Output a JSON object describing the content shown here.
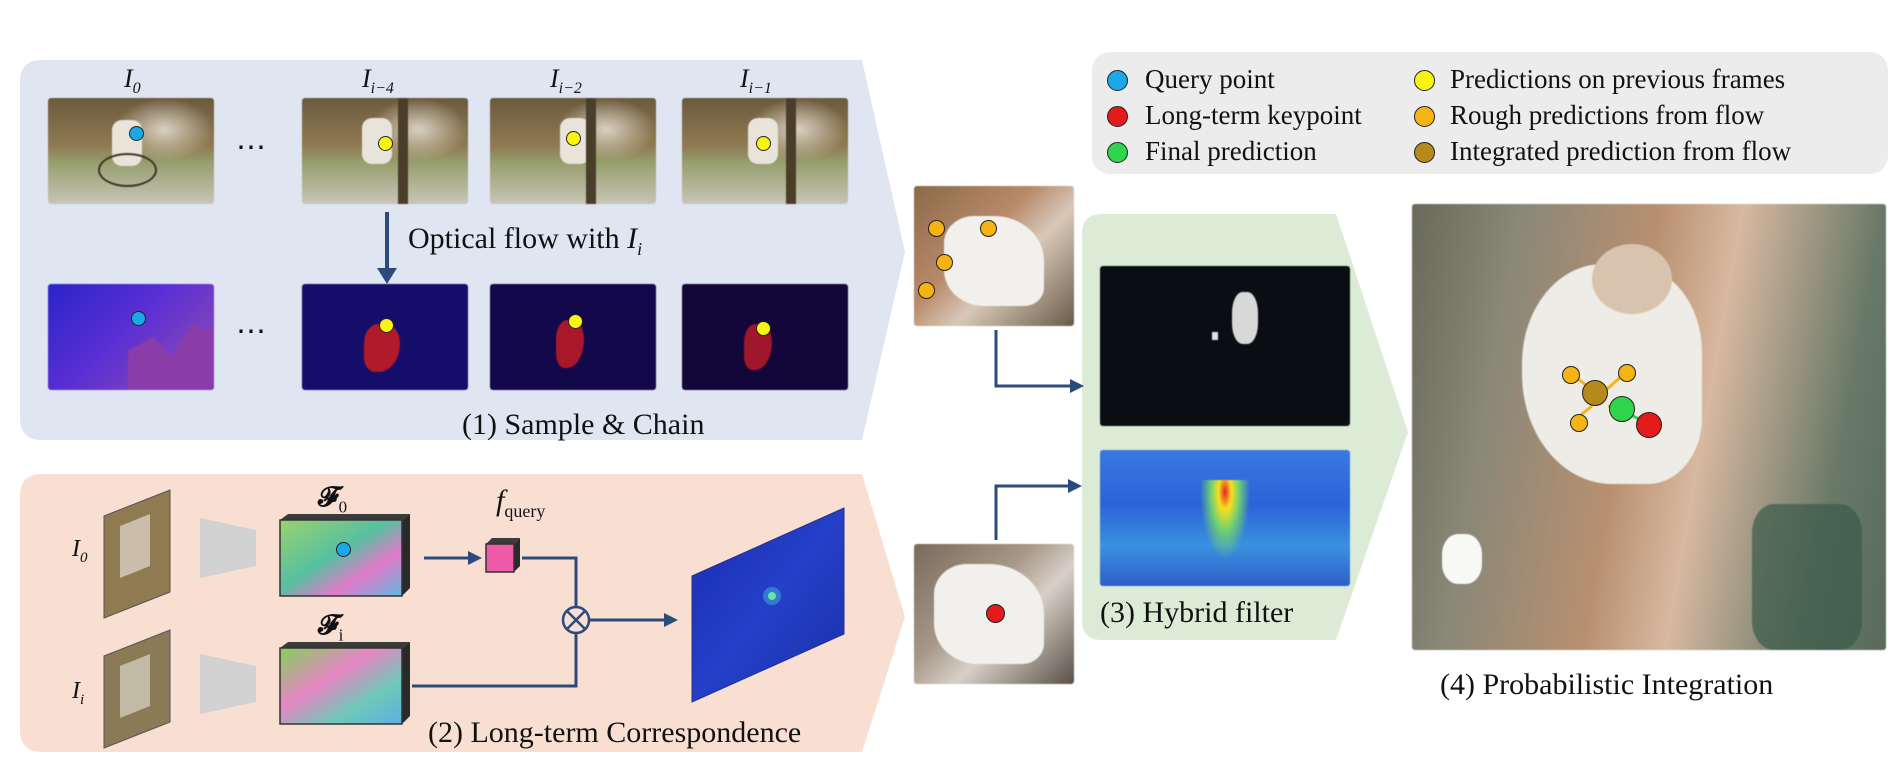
{
  "legend": {
    "items": [
      {
        "label": "Query point",
        "color": "#1aa9e6"
      },
      {
        "label": "Long-term keypoint",
        "color": "#e41b1b"
      },
      {
        "label": "Final prediction",
        "color": "#2fd64b"
      },
      {
        "label": "Predictions on previous frames",
        "color": "#f7f313"
      },
      {
        "label": "Rough predictions from flow",
        "color": "#f5b314"
      },
      {
        "label": "Integrated prediction from flow",
        "color": "#b48a1c"
      }
    ]
  },
  "panel1": {
    "title": "(1) Sample & Chain",
    "frames": [
      {
        "base": "I",
        "sub": "0"
      },
      {
        "base": "I",
        "sub": "i−4"
      },
      {
        "base": "I",
        "sub": "i−2"
      },
      {
        "base": "I",
        "sub": "i−1"
      }
    ],
    "ellipsis": "⋯",
    "flow_label": "Optical flow with ",
    "flow_var": {
      "base": "I",
      "sub": "i"
    }
  },
  "panel2": {
    "title": "(2) Long-term Correspondence",
    "inputs": [
      {
        "base": "I",
        "sub": "0"
      },
      {
        "base": "I",
        "sub": "i"
      }
    ],
    "features": [
      {
        "base": "𝓕",
        "sub": "0"
      },
      {
        "base": "𝓕",
        "sub": "i"
      }
    ],
    "query": {
      "base": "f",
      "sub": "query"
    },
    "op_symbol": "⊗"
  },
  "panel3": {
    "title": "(3) Hybrid filter"
  },
  "panel4": {
    "title": "(4) Probabilistic Integration"
  },
  "colors": {
    "panel1_bg": "#dfe6f2",
    "panel2_bg": "#f9dfd2",
    "panel3_bg": "#dcebd6",
    "legend_bg": "#ececec",
    "arrow": "#2c4a7c"
  }
}
